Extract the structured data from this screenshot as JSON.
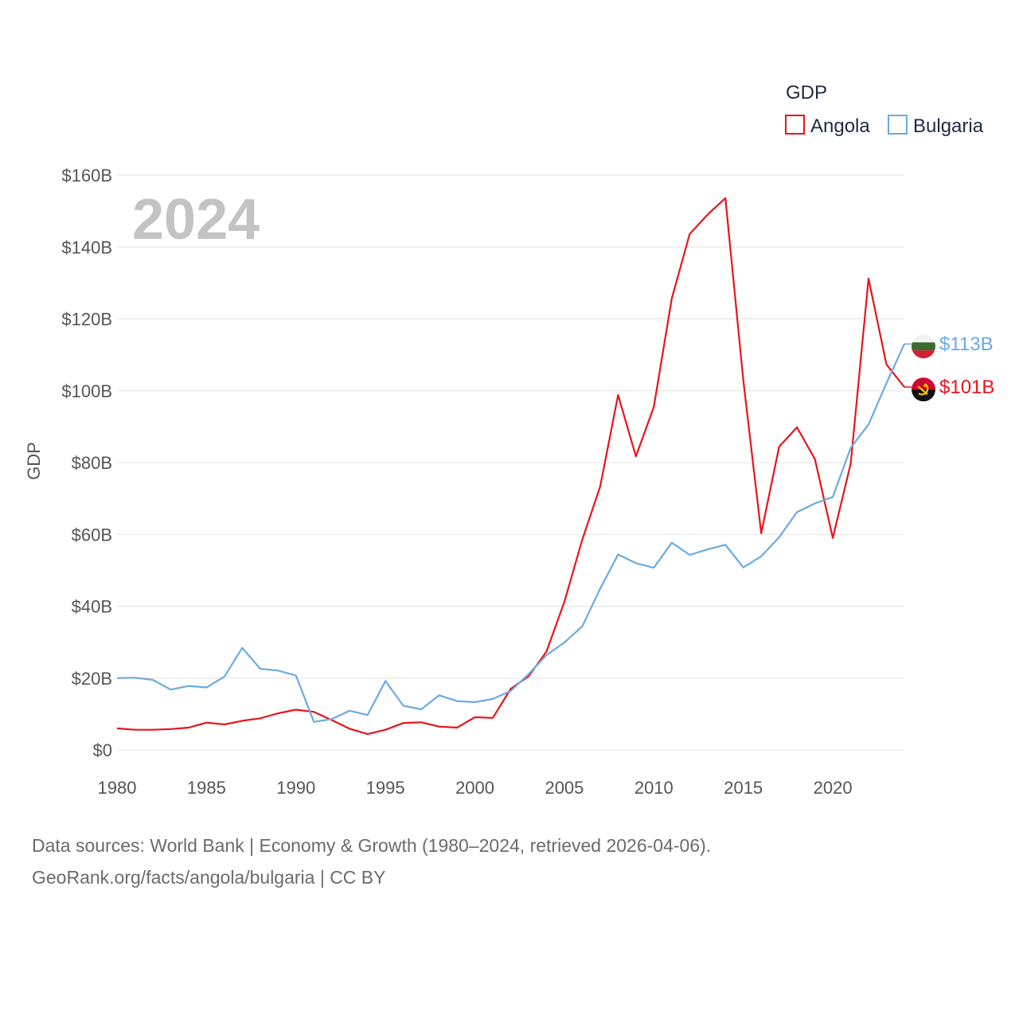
{
  "chart_data": {
    "type": "line",
    "title": "GDP",
    "year_label": "2024",
    "ylabel": "GDP",
    "xlabel": "",
    "xlim": [
      1980,
      2024
    ],
    "ylim": [
      0,
      160
    ],
    "y_unit": "billion USD",
    "y_ticks": [
      0,
      20,
      40,
      60,
      80,
      100,
      120,
      140,
      160
    ],
    "y_tick_labels": [
      "$0",
      "$20B",
      "$40B",
      "$60B",
      "$80B",
      "$100B",
      "$120B",
      "$140B",
      "$160B"
    ],
    "x_ticks": [
      1980,
      1985,
      1990,
      1995,
      2000,
      2005,
      2010,
      2015,
      2020
    ],
    "x_tick_labels": [
      "1980",
      "1985",
      "1990",
      "1995",
      "2000",
      "2005",
      "2010",
      "2015",
      "2020"
    ],
    "grid": true,
    "legend_position": "top-right",
    "x": [
      1980,
      1981,
      1982,
      1983,
      1984,
      1985,
      1986,
      1987,
      1988,
      1989,
      1990,
      1991,
      1992,
      1993,
      1994,
      1995,
      1996,
      1997,
      1998,
      1999,
      2000,
      2001,
      2002,
      2003,
      2004,
      2005,
      2006,
      2007,
      2008,
      2009,
      2010,
      2011,
      2012,
      2013,
      2014,
      2015,
      2016,
      2017,
      2018,
      2019,
      2020,
      2021,
      2022,
      2023,
      2024
    ],
    "series": [
      {
        "name": "Angola",
        "color": "#e8141c",
        "end_label": "$101B",
        "flag": "angola-flag",
        "values": [
          6.0,
          5.6,
          5.6,
          5.8,
          6.2,
          7.6,
          7.1,
          8.1,
          8.8,
          10.2,
          11.2,
          10.6,
          8.3,
          5.9,
          4.4,
          5.6,
          7.5,
          7.7,
          6.5,
          6.2,
          9.1,
          8.9,
          17.0,
          20.5,
          27.4,
          41.2,
          58.5,
          73.3,
          98.8,
          81.7,
          95.5,
          125.6,
          143.6,
          149.0,
          153.6,
          102.9,
          60.3,
          84.4,
          89.8,
          81.0,
          59.0,
          79.7,
          131.2,
          107.3,
          101.0
        ]
      },
      {
        "name": "Bulgaria",
        "color": "#6aaae4",
        "end_label": "$113B",
        "flag": "bulgaria-flag",
        "values": [
          20.0,
          20.1,
          19.5,
          16.8,
          17.8,
          17.4,
          20.4,
          28.4,
          22.6,
          22.1,
          20.7,
          7.8,
          8.6,
          10.9,
          9.7,
          19.2,
          12.3,
          11.3,
          15.2,
          13.6,
          13.3,
          14.2,
          16.4,
          21.1,
          26.4,
          29.9,
          34.4,
          44.9,
          54.4,
          52.0,
          50.7,
          57.7,
          54.3,
          55.8,
          57.1,
          50.8,
          53.9,
          59.2,
          66.2,
          68.6,
          70.4,
          84.1,
          90.6,
          102.1,
          113.0
        ]
      }
    ]
  },
  "source": {
    "line1": "Data sources: World Bank | Economy & Growth (1980–2024, retrieved 2026-04-06).",
    "line2": "GeoRank.org/facts/angola/bulgaria | CC BY"
  }
}
